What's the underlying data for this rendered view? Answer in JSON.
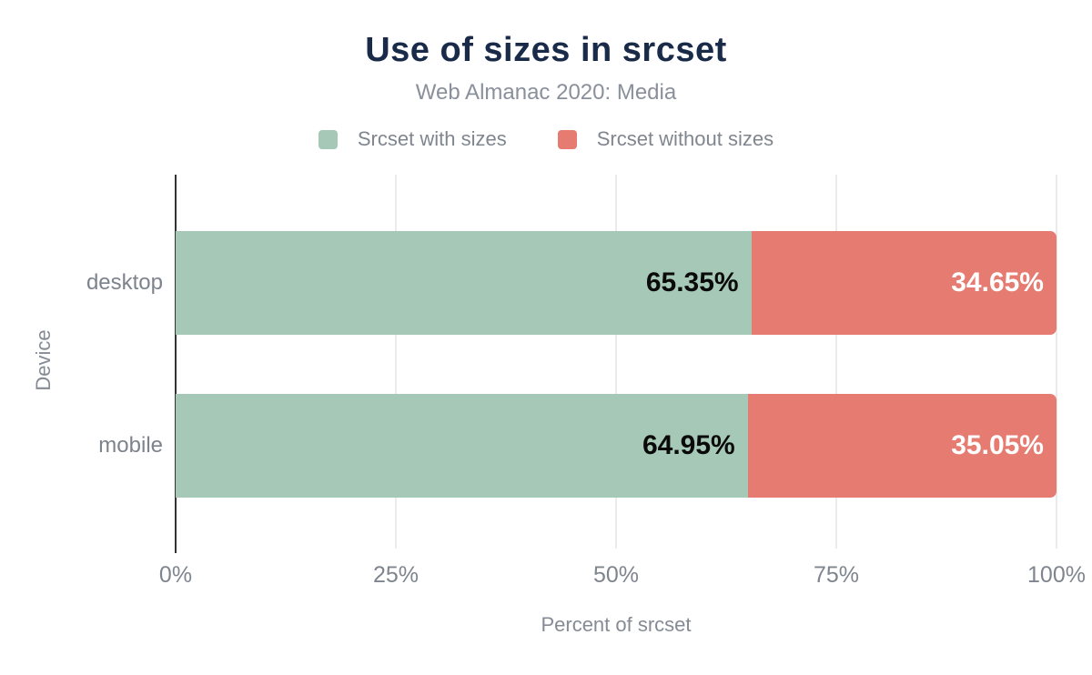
{
  "title": "Use of sizes in srcset",
  "subtitle": "Web Almanac 2020: Media",
  "colors": {
    "title_navy": "#1a2b49",
    "text_gray": "#858b94",
    "axis_dark": "#333333",
    "gridline": "#ebebeb",
    "series_green": "#a6c8b6",
    "series_red": "#e57b71",
    "value_label_on_green": "#0a0a0a",
    "value_label_on_red": "#ffffff"
  },
  "legend": [
    {
      "label": "Srcset with sizes",
      "color": "#a6c8b6"
    },
    {
      "label": "Srcset without sizes",
      "color": "#e57b71"
    }
  ],
  "chart_data": {
    "type": "bar",
    "orientation": "horizontal",
    "stacked": true,
    "title": "Use of sizes in srcset",
    "subtitle": "Web Almanac 2020: Media",
    "categories": [
      "desktop",
      "mobile"
    ],
    "series": [
      {
        "name": "Srcset with sizes",
        "color": "#a6c8b6",
        "values": [
          65.35,
          64.95
        ]
      },
      {
        "name": "Srcset without sizes",
        "color": "#e57b71",
        "values": [
          34.65,
          35.05
        ]
      }
    ],
    "value_labels": [
      [
        "65.35%",
        "34.65%"
      ],
      [
        "64.95%",
        "35.05%"
      ]
    ],
    "value_label_colors": [
      "#0a0a0a",
      "#ffffff"
    ],
    "xlabel": "Percent of srcset",
    "ylabel": "Device",
    "xlim": [
      0,
      100
    ],
    "xticks": [
      {
        "value": 0,
        "label": "0%"
      },
      {
        "value": 25,
        "label": "25%"
      },
      {
        "value": 50,
        "label": "50%"
      },
      {
        "value": 75,
        "label": "75%"
      },
      {
        "value": 100,
        "label": "100%"
      }
    ],
    "grid": "vertical",
    "legend_position": "top"
  }
}
